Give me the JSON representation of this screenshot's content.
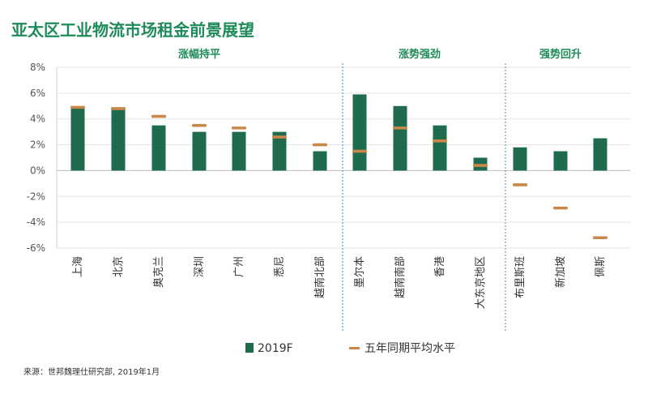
{
  "title": "亚太区工业物流市场租金前景展望",
  "colors": {
    "bar": "#1e6b4d",
    "avg": "#c9874a",
    "title": "#1f8a5a",
    "divider": "#5aa0c8"
  },
  "chart_data": {
    "type": "bar",
    "ylim": [
      -6,
      8
    ],
    "yticks": [
      "-6%",
      "-4%",
      "-2%",
      "0%",
      "2%",
      "4%",
      "6%",
      "8%"
    ],
    "groups": [
      {
        "label": "涨幅持平",
        "categories": [
          "上海",
          "北京",
          "奥克兰",
          "深圳",
          "广州",
          "悉尼",
          "越南北部"
        ]
      },
      {
        "label": "涨势强劲",
        "categories": [
          "墨尔本",
          "越南南部",
          "香港",
          "大东京地区"
        ]
      },
      {
        "label": "强势回升",
        "categories": [
          "布里斯班",
          "新加坡",
          "佩斯"
        ]
      }
    ],
    "categories": [
      "上海",
      "北京",
      "奥克兰",
      "深圳",
      "广州",
      "悉尼",
      "越南北部",
      "墨尔本",
      "越南南部",
      "香港",
      "大东京地区",
      "布里斯班",
      "新加坡",
      "佩斯"
    ],
    "series": [
      {
        "name": "2019F",
        "type": "bar",
        "values": [
          4.9,
          4.7,
          3.5,
          3.0,
          3.0,
          3.0,
          1.5,
          5.9,
          5.0,
          3.5,
          1.0,
          1.8,
          1.5,
          2.5
        ]
      },
      {
        "name": "五年同期平均水平",
        "type": "marker",
        "values": [
          4.9,
          4.8,
          4.2,
          3.5,
          3.3,
          2.6,
          2.0,
          1.5,
          3.3,
          2.3,
          0.4,
          -1.1,
          -2.9,
          -5.2
        ]
      }
    ]
  },
  "legend": {
    "bar_label": "2019F",
    "avg_label": "五年同期平均水平"
  },
  "source": "来源：世邦魏理仕研究部, 2019年1月"
}
